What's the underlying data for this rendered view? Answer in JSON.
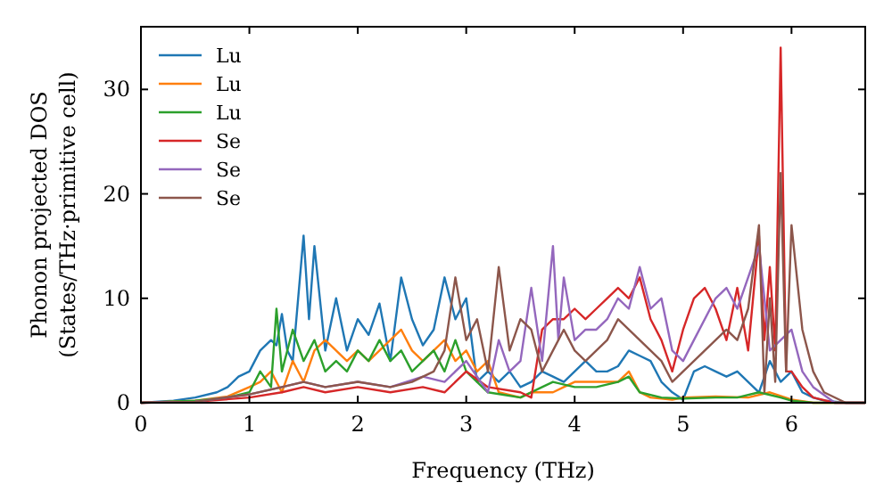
{
  "chart_data": {
    "type": "line",
    "xlabel": "Frequency (THz)",
    "ylabel": "Phonon projected DOS\n(States/THz·primitive cell)",
    "xlim": [
      0,
      6.68
    ],
    "ylim": [
      0,
      36
    ],
    "xticks": [
      0,
      1,
      2,
      3,
      4,
      5,
      6
    ],
    "yticks": [
      0,
      10,
      20,
      30
    ],
    "legend": "top left",
    "grid": false,
    "marker": "none",
    "line_style": "solid",
    "series": [
      {
        "name": "Lu",
        "color": "#1f77b4",
        "x": [
          0,
          0.3,
          0.5,
          0.7,
          0.8,
          0.9,
          1.0,
          1.1,
          1.2,
          1.25,
          1.3,
          1.35,
          1.4,
          1.5,
          1.55,
          1.6,
          1.7,
          1.8,
          1.9,
          2.0,
          2.1,
          2.2,
          2.3,
          2.4,
          2.5,
          2.6,
          2.7,
          2.8,
          2.9,
          3.0,
          3.1,
          3.2,
          3.3,
          3.4,
          3.5,
          3.6,
          3.7,
          3.8,
          3.9,
          4.0,
          4.1,
          4.2,
          4.3,
          4.4,
          4.5,
          4.6,
          4.7,
          4.8,
          4.9,
          5.0,
          5.1,
          5.2,
          5.3,
          5.4,
          5.5,
          5.6,
          5.7,
          5.8,
          5.9,
          6.0,
          6.1,
          6.2,
          6.3,
          6.5,
          6.68
        ],
        "values": [
          0,
          0.2,
          0.5,
          1,
          1.5,
          2.5,
          3,
          5,
          6,
          5.5,
          8.5,
          5,
          4,
          16,
          8,
          15,
          5,
          10,
          5,
          8,
          6.5,
          9.5,
          4,
          12,
          8,
          5.5,
          7,
          12,
          8,
          10,
          2,
          3,
          2,
          3,
          1.5,
          2,
          3,
          2.5,
          2,
          3,
          4,
          3,
          3,
          3.5,
          5,
          4.5,
          4,
          2,
          1,
          0.3,
          3,
          3.5,
          3,
          2.5,
          3,
          2,
          1,
          4,
          2,
          3,
          1,
          0.5,
          0.2,
          0,
          0
        ]
      },
      {
        "name": "Lu",
        "color": "#ff7f0e",
        "x": [
          0,
          0.5,
          0.8,
          1.0,
          1.1,
          1.2,
          1.3,
          1.4,
          1.5,
          1.6,
          1.7,
          1.8,
          1.9,
          2.0,
          2.1,
          2.2,
          2.3,
          2.4,
          2.5,
          2.6,
          2.7,
          2.8,
          2.9,
          3.0,
          3.1,
          3.2,
          3.3,
          3.5,
          3.6,
          3.8,
          3.9,
          4.0,
          4.2,
          4.4,
          4.5,
          4.6,
          4.7,
          4.9,
          5.0,
          5.3,
          5.6,
          5.8,
          6.0,
          6.2,
          6.68
        ],
        "values": [
          0,
          0.2,
          0.6,
          1.5,
          2,
          3,
          1,
          4,
          2,
          5,
          6,
          5,
          4,
          5,
          4,
          5,
          6,
          7,
          5,
          4,
          5,
          6,
          4,
          5,
          3,
          4,
          1,
          0.5,
          1,
          1,
          1.5,
          2,
          2,
          2,
          3,
          1,
          0.5,
          0.3,
          0.5,
          0.6,
          0.5,
          1,
          0.3,
          0,
          0
        ]
      },
      {
        "name": "Lu",
        "color": "#2ca02c",
        "x": [
          0,
          0.5,
          0.8,
          1.0,
          1.1,
          1.2,
          1.25,
          1.3,
          1.4,
          1.5,
          1.6,
          1.7,
          1.8,
          1.9,
          2.0,
          2.1,
          2.2,
          2.3,
          2.4,
          2.5,
          2.6,
          2.7,
          2.8,
          2.9,
          3.0,
          3.1,
          3.2,
          3.5,
          3.7,
          3.8,
          4.0,
          4.2,
          4.4,
          4.5,
          4.6,
          4.8,
          5.0,
          5.3,
          5.5,
          5.7,
          5.9,
          6.0,
          6.2,
          6.68
        ],
        "values": [
          0,
          0.2,
          0.5,
          1,
          3,
          1.5,
          9,
          3,
          7,
          4,
          6,
          3,
          4,
          3,
          5,
          4,
          6,
          4,
          5,
          3,
          4,
          5,
          3,
          6,
          3,
          2,
          1,
          0.5,
          1.5,
          2,
          1.5,
          1.5,
          2,
          2.5,
          1,
          0.5,
          0.4,
          0.5,
          0.5,
          1,
          0.5,
          0.2,
          0,
          0
        ]
      },
      {
        "name": "Se",
        "color": "#d62728",
        "x": [
          0,
          0.5,
          1.0,
          1.3,
          1.5,
          1.7,
          2.0,
          2.3,
          2.6,
          2.8,
          3.0,
          3.2,
          3.5,
          3.6,
          3.7,
          3.8,
          3.9,
          4.0,
          4.1,
          4.2,
          4.3,
          4.4,
          4.5,
          4.6,
          4.7,
          4.8,
          4.9,
          5.0,
          5.1,
          5.2,
          5.3,
          5.4,
          5.5,
          5.6,
          5.7,
          5.75,
          5.8,
          5.85,
          5.9,
          5.95,
          6.0,
          6.1,
          6.2,
          6.4,
          6.68
        ],
        "values": [
          0,
          0.1,
          0.5,
          1,
          1.5,
          1,
          1.5,
          1,
          1.5,
          1,
          3,
          1.5,
          1,
          0.5,
          7,
          8,
          8,
          9,
          8,
          9,
          10,
          11,
          10,
          12,
          8,
          6,
          3,
          7,
          10,
          11,
          9,
          6,
          11,
          5,
          16,
          6,
          13,
          5,
          34,
          3,
          3,
          1.5,
          0.5,
          0,
          0
        ]
      },
      {
        "name": "Se",
        "color": "#9467bd",
        "x": [
          0,
          0.5,
          1.0,
          1.3,
          1.5,
          1.7,
          2.0,
          2.3,
          2.6,
          2.8,
          3.0,
          3.1,
          3.2,
          3.3,
          3.4,
          3.5,
          3.6,
          3.7,
          3.8,
          3.85,
          3.9,
          4.0,
          4.1,
          4.2,
          4.3,
          4.4,
          4.5,
          4.6,
          4.7,
          4.8,
          4.9,
          5.0,
          5.1,
          5.3,
          5.4,
          5.5,
          5.6,
          5.7,
          5.8,
          5.9,
          6.0,
          6.1,
          6.2,
          6.4,
          6.68
        ],
        "values": [
          0,
          0.1,
          0.8,
          1.5,
          2,
          1.5,
          2,
          1.5,
          2.5,
          2,
          4,
          2.5,
          1,
          6,
          3,
          4,
          11,
          4,
          15,
          6,
          12,
          6,
          7,
          7,
          8,
          10,
          9,
          13,
          9,
          10,
          5,
          4,
          6,
          10,
          11,
          9,
          12,
          15,
          5,
          null,
          7,
          3,
          1.5,
          0,
          0
        ]
      },
      {
        "name": "Se",
        "color": "#8c564b",
        "x": [
          0,
          0.5,
          1.0,
          1.3,
          1.5,
          1.7,
          2.0,
          2.3,
          2.5,
          2.7,
          2.8,
          2.9,
          3.0,
          3.1,
          3.2,
          3.3,
          3.4,
          3.5,
          3.6,
          3.7,
          3.8,
          3.9,
          4.0,
          4.1,
          4.2,
          4.3,
          4.4,
          4.5,
          4.6,
          4.7,
          4.8,
          4.9,
          5.0,
          5.1,
          5.2,
          5.3,
          5.4,
          5.5,
          5.6,
          5.7,
          5.75,
          5.8,
          5.85,
          5.9,
          5.95,
          6.0,
          6.1,
          6.2,
          6.3,
          6.5,
          6.68
        ],
        "values": [
          0,
          0.1,
          0.8,
          1.5,
          2,
          1.5,
          2,
          1.5,
          2,
          3,
          5,
          12,
          6,
          8,
          3,
          13,
          5,
          8,
          7,
          3,
          5,
          7,
          5,
          4,
          5,
          6,
          8,
          7,
          6,
          5,
          4,
          2,
          3,
          4,
          5,
          6,
          7,
          6,
          9,
          17,
          1,
          10,
          2,
          22,
          3,
          17,
          7,
          3,
          1,
          0,
          0
        ]
      }
    ]
  }
}
